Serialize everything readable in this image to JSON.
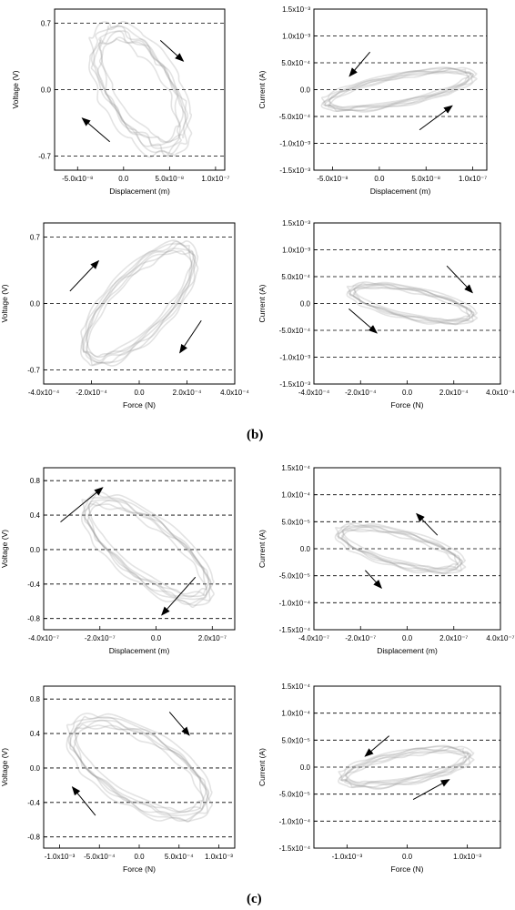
{
  "figure": {
    "label_b": "(b)",
    "label_c": "(c)"
  },
  "chart_data": [
    {
      "id": "b1",
      "type": "scatter",
      "xlabel": "Displacement (m)",
      "ylabel": "Voltage (V)",
      "xlim": [
        -7.5e-08,
        1.1e-07
      ],
      "ylim": [
        -0.85,
        0.85
      ],
      "xticks": [
        -5e-08,
        0,
        5e-08,
        1e-07
      ],
      "xtick_labels": [
        "-5.0x10⁻⁸",
        "0.0",
        "5.0x10⁻⁸",
        "1.0x10⁻⁷"
      ],
      "yticks": [
        -0.7,
        0,
        0.7
      ],
      "ytick_labels": [
        "-0.7",
        "0.0",
        "0.7"
      ],
      "hlines": [
        -0.7,
        0,
        0.7
      ],
      "loop": {
        "cx": 1.8e-08,
        "cy": 0.0,
        "ax": 4.8e-08,
        "ay": 0.61,
        "tilt": -0.62,
        "dx": 6e-09,
        "dy": 0.08
      },
      "arrows": [
        {
          "x1": 4e-08,
          "y1": 0.52,
          "x2": 6.5e-08,
          "y2": 0.3
        },
        {
          "x1": -1.5e-08,
          "y1": -0.55,
          "x2": -4.5e-08,
          "y2": -0.3
        }
      ]
    },
    {
      "id": "b2",
      "type": "scatter",
      "xlabel": "Displacement (m)",
      "ylabel": "Current (A)",
      "xlim": [
        -7e-08,
        1.15e-07
      ],
      "ylim": [
        -0.0015,
        0.0015
      ],
      "xticks": [
        -5e-08,
        0,
        5e-08,
        1e-07
      ],
      "xtick_labels": [
        "-5.0x10⁻⁸",
        "0.0",
        "5.0x10⁻⁸",
        "1.0x10⁻⁷"
      ],
      "yticks": [
        -0.0015,
        -0.001,
        -0.0005,
        0,
        0.0005,
        0.001,
        0.0015
      ],
      "ytick_labels": [
        "-1.5x10⁻³",
        "-1.0x10⁻³",
        "-5.0x10⁻⁴",
        "0.0",
        "5.0x10⁻⁴",
        "1.0x10⁻³",
        "1.5x10⁻³"
      ],
      "hlines": [
        -0.001,
        -0.0005,
        0,
        0.0005,
        0.001
      ],
      "loop": {
        "cx": 2.1e-08,
        "cy": 0.0,
        "ax": 7.8e-08,
        "ay": 0.00036,
        "tilt": 0.78,
        "dx": 4e-09,
        "dy": 4e-05
      },
      "arrows": [
        {
          "x1": -1e-08,
          "y1": 0.0007,
          "x2": -3.2e-08,
          "y2": 0.00025
        },
        {
          "x1": 4.3e-08,
          "y1": -0.00075,
          "x2": 7.8e-08,
          "y2": -0.0003
        }
      ]
    },
    {
      "id": "b3",
      "type": "scatter",
      "xlabel": "Force (N)",
      "ylabel": "Voltage (V)",
      "xlim": [
        -0.0004,
        0.0004
      ],
      "ylim": [
        -0.85,
        0.85
      ],
      "xticks": [
        -0.0004,
        -0.0002,
        0,
        0.0002,
        0.0004
      ],
      "xtick_labels": [
        "-4.0x10⁻⁴",
        "-2.0x10⁻⁴",
        "0.0",
        "2.0x10⁻⁴",
        "4.0x10⁻⁴"
      ],
      "yticks": [
        -0.7,
        0,
        0.7
      ],
      "ytick_labels": [
        "-0.7",
        "0.0",
        "0.7"
      ],
      "hlines": [
        -0.7,
        0,
        0.7
      ],
      "loop": {
        "cx": 0.0,
        "cy": 0.0,
        "ax": 0.00023,
        "ay": 0.6,
        "tilt": 0.82,
        "dx": 1.2e-05,
        "dy": 0.05
      },
      "arrows": [
        {
          "x1": -0.00029,
          "y1": 0.13,
          "x2": -0.00017,
          "y2": 0.45
        },
        {
          "x1": 0.00026,
          "y1": -0.18,
          "x2": 0.00017,
          "y2": -0.52
        }
      ]
    },
    {
      "id": "b4",
      "type": "scatter",
      "xlabel": "Force (N)",
      "ylabel": "Current (A)",
      "xlim": [
        -0.0004,
        0.0004
      ],
      "ylim": [
        -0.0015,
        0.0015
      ],
      "xticks": [
        -0.0004,
        -0.0002,
        0,
        0.0002,
        0.0004
      ],
      "xtick_labels": [
        "-4.0x10⁻⁴",
        "-2.0x10⁻⁴",
        "0.0",
        "2.0x10⁻⁴",
        "4.0x10⁻⁴"
      ],
      "yticks": [
        -0.0015,
        -0.001,
        -0.0005,
        0,
        0.0005,
        0.001,
        0.0015
      ],
      "ytick_labels": [
        "-1.5x10⁻³",
        "-1.0x10⁻³",
        "-5.0x10⁻⁴",
        "0.0",
        "5.0x10⁻⁴",
        "1.0x10⁻³",
        "1.5x10⁻³"
      ],
      "hlines": [
        -0.001,
        -0.0005,
        0,
        0.0005,
        0.001
      ],
      "loop": {
        "cx": 2e-05,
        "cy": 0.0,
        "ax": 0.00026,
        "ay": 0.00034,
        "tilt": -0.7,
        "dx": 1.5e-05,
        "dy": 4e-05
      },
      "arrows": [
        {
          "x1": 0.00017,
          "y1": 0.0007,
          "x2": 0.00028,
          "y2": 0.0002
        },
        {
          "x1": -0.00025,
          "y1": -0.0001,
          "x2": -0.00013,
          "y2": -0.00055
        }
      ]
    },
    {
      "id": "c1",
      "type": "scatter",
      "xlabel": "Displacement (m)",
      "ylabel": "Voltage (V)",
      "xlim": [
        -4e-07,
        2.8e-07
      ],
      "ylim": [
        -0.93,
        0.95
      ],
      "xticks": [
        -4e-07,
        -2e-07,
        0,
        2e-07
      ],
      "xtick_labels": [
        "-4.0x10⁻⁷",
        "-2.0x10⁻⁷",
        "0.0",
        "2.0x10⁻⁷"
      ],
      "yticks": [
        -0.8,
        -0.4,
        0,
        0.4,
        0.8
      ],
      "ytick_labels": [
        "-0.8",
        "-0.4",
        "0.0",
        "0.4",
        "0.8"
      ],
      "hlines": [
        -0.8,
        -0.4,
        0,
        0.4,
        0.8
      ],
      "loop": {
        "cx": -3e-08,
        "cy": 0.0,
        "ax": 2.2e-07,
        "ay": 0.58,
        "tilt": -0.85,
        "dx": 1.2e-08,
        "dy": 0.06
      },
      "arrows": [
        {
          "x1": -3.4e-07,
          "y1": 0.32,
          "x2": -1.9e-07,
          "y2": 0.72
        },
        {
          "x1": 1.4e-07,
          "y1": -0.32,
          "x2": 2e-08,
          "y2": -0.76
        }
      ]
    },
    {
      "id": "c2",
      "type": "scatter",
      "xlabel": "Displacement (m)",
      "ylabel": "Current (A)",
      "xlim": [
        -4e-07,
        4e-07
      ],
      "ylim": [
        -0.00015,
        0.00015
      ],
      "xticks": [
        -4e-07,
        -2e-07,
        0,
        2e-07,
        4e-07
      ],
      "xtick_labels": [
        "-4.0x10⁻⁷",
        "-2.0x10⁻⁷",
        "0.0",
        "2.0x10⁻⁷",
        "4.0x10⁻⁷"
      ],
      "yticks": [
        -0.00015,
        -0.0001,
        -5e-05,
        0,
        5e-05,
        0.0001,
        0.00015
      ],
      "ytick_labels": [
        "-1.5x10⁻⁴",
        "-1.0x10⁻⁴",
        "-5.0x10⁻⁵",
        "0.0",
        "5.0x10⁻⁵",
        "1.0x10⁻⁴",
        "1.5x10⁻⁴"
      ],
      "hlines": [
        -0.0001,
        -5e-05,
        0,
        5e-05,
        0.0001
      ],
      "loop": {
        "cx": -3e-08,
        "cy": 0.0,
        "ax": 2.6e-07,
        "ay": 4e-05,
        "tilt": -0.75,
        "dx": 1.5e-08,
        "dy": 5e-06
      },
      "arrows": [
        {
          "x1": 1.3e-07,
          "y1": 2.5e-05,
          "x2": 4e-08,
          "y2": 6.5e-05
        },
        {
          "x1": -1.8e-07,
          "y1": -4e-05,
          "x2": -1.1e-07,
          "y2": -7.3e-05
        }
      ]
    },
    {
      "id": "c3",
      "type": "scatter",
      "xlabel": "Force (N)",
      "ylabel": "Voltage (V)",
      "xlim": [
        -0.0012,
        0.0012
      ],
      "ylim": [
        -0.93,
        0.95
      ],
      "xticks": [
        -0.001,
        -0.0005,
        0,
        0.0005,
        0.001
      ],
      "xtick_labels": [
        "-1.0x10⁻³",
        "-5.0x10⁻⁴",
        "0.0",
        "5.0x10⁻⁴",
        "1.0x10⁻³"
      ],
      "yticks": [
        -0.8,
        -0.4,
        0,
        0.4,
        0.8
      ],
      "ytick_labels": [
        "-0.8",
        "-0.4",
        "0.0",
        "0.4",
        "0.8"
      ],
      "hlines": [
        -0.8,
        -0.4,
        0,
        0.4,
        0.8
      ],
      "loop": {
        "cx": 0.0,
        "cy": 0.0,
        "ax": 0.00085,
        "ay": 0.55,
        "tilt": -0.68,
        "dx": 5e-05,
        "dy": 0.06
      },
      "arrows": [
        {
          "x1": 0.00038,
          "y1": 0.65,
          "x2": 0.00063,
          "y2": 0.38
        },
        {
          "x1": -0.00055,
          "y1": -0.55,
          "x2": -0.00084,
          "y2": -0.22
        }
      ]
    },
    {
      "id": "c4",
      "type": "scatter",
      "xlabel": "Force (N)",
      "ylabel": "Current (A)",
      "xlim": [
        -0.00155,
        0.00155
      ],
      "ylim": [
        -0.00015,
        0.00015
      ],
      "xticks": [
        -0.001,
        0,
        0.001
      ],
      "xtick_labels": [
        "-1.0x10⁻³",
        "0.0",
        "1.0x10⁻³"
      ],
      "yticks": [
        -0.00015,
        -0.0001,
        -5e-05,
        0,
        5e-05,
        0.0001,
        0.00015
      ],
      "ytick_labels": [
        "-1.5x10⁻⁴",
        "-1.0x10⁻⁴",
        "-5.0x10⁻⁵",
        "0.0",
        "5.0x10⁻⁵",
        "1.0x10⁻⁴",
        "1.5x10⁻⁴"
      ],
      "hlines": [
        -0.0001,
        -5e-05,
        0,
        5e-05,
        0.0001
      ],
      "loop": {
        "cx": -2e-05,
        "cy": 0.0,
        "ax": 0.00105,
        "ay": 3.3e-05,
        "tilt": 0.66,
        "dx": 6e-05,
        "dy": 5e-06
      },
      "arrows": [
        {
          "x1": -0.0003,
          "y1": 5.8e-05,
          "x2": -0.0007,
          "y2": 2e-05
        },
        {
          "x1": 0.0001,
          "y1": -6e-05,
          "x2": 0.0007,
          "y2": -2.3e-05
        }
      ]
    }
  ]
}
